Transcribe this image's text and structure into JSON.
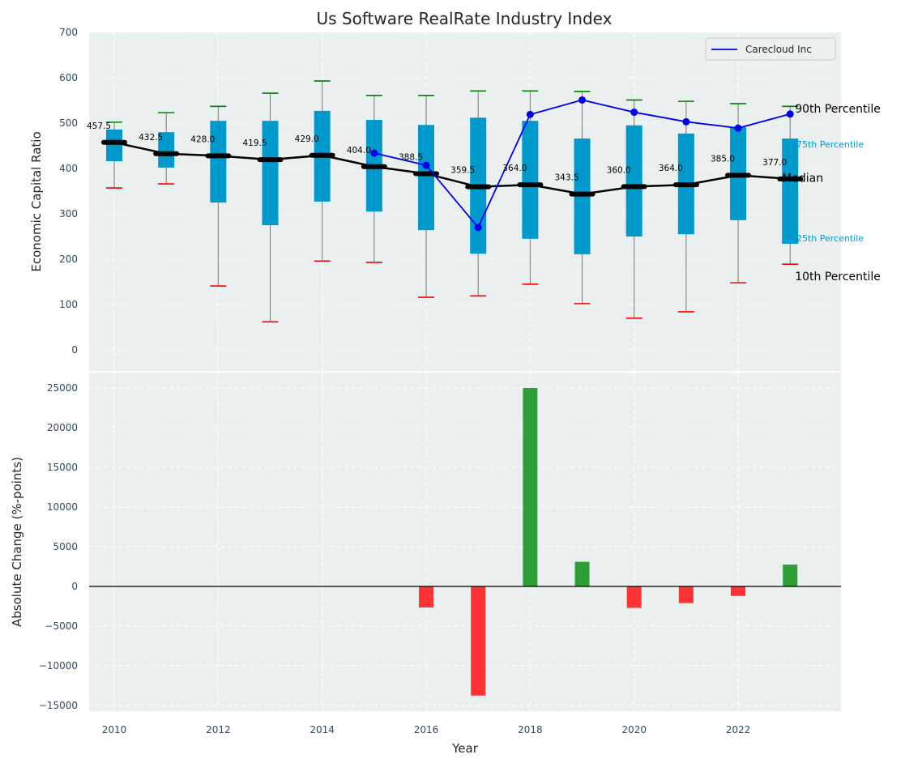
{
  "chart_data": [
    {
      "type": "box",
      "title": "Us Software RealRate Industry Index",
      "xlabel": "",
      "ylabel": "Economic Capital Ratio",
      "ylim": [
        -50,
        700
      ],
      "yticks": [
        0,
        100,
        200,
        300,
        400,
        500,
        600,
        700
      ],
      "grid": true,
      "legend": {
        "position": "top-right",
        "entries": [
          "Carecloud Inc"
        ]
      },
      "x": [
        2010,
        2011,
        2012,
        2013,
        2014,
        2015,
        2016,
        2017,
        2018,
        2019,
        2020,
        2021,
        2022,
        2023
      ],
      "series": [
        {
          "name": "90th Percentile",
          "values": [
            502,
            523,
            537,
            566,
            593,
            561,
            561,
            571,
            571,
            570,
            551,
            548,
            543,
            537
          ]
        },
        {
          "name": "75th Percentile",
          "values": [
            486,
            480,
            505,
            505,
            527,
            507,
            496,
            512,
            505,
            466,
            495,
            477,
            491,
            466
          ]
        },
        {
          "name": "Median",
          "values": [
            457.5,
            432.5,
            428.0,
            419.5,
            429.0,
            404.0,
            388.5,
            359.5,
            364.0,
            343.5,
            360.0,
            364.0,
            385.0,
            377.0
          ]
        },
        {
          "name": "25th Percentile",
          "values": [
            416,
            402,
            325,
            275,
            327,
            305,
            264,
            212,
            245,
            211,
            250,
            255,
            286,
            234
          ]
        },
        {
          "name": "10th Percentile",
          "values": [
            357,
            366,
            141,
            62,
            196,
            193,
            116,
            119,
            145,
            102,
            70,
            84,
            148,
            189
          ]
        },
        {
          "name": "Carecloud Inc",
          "x": [
            2015,
            2016,
            2017,
            2018,
            2019,
            2020,
            2021,
            2022,
            2023
          ],
          "values": [
            434,
            407,
            270,
            519,
            551,
            524,
            503,
            489,
            520
          ]
        }
      ],
      "median_labels": [
        "457.5",
        "432.5",
        "428.0",
        "419.5",
        "429.0",
        "404.0",
        "388.5",
        "359.5",
        "364.0",
        "343.5",
        "360.0",
        "364.0",
        "385.0",
        "377.0"
      ],
      "annotations": {
        "p90": "90th Percentile",
        "p75": "75th Percentile",
        "median": "Median",
        "p25": "25th Percentile",
        "p10": "10th Percentile"
      }
    },
    {
      "type": "bar",
      "xlabel": "Year",
      "ylabel": "Absolute Change (%-points)",
      "ylim": [
        -15500,
        26000
      ],
      "yticks": [
        -15000,
        -10000,
        -5000,
        0,
        5000,
        10000,
        15000,
        20000,
        25000
      ],
      "xticks": [
        2010,
        2012,
        2014,
        2016,
        2018,
        2020,
        2022
      ],
      "grid": true,
      "x": [
        2016,
        2017,
        2018,
        2019,
        2020,
        2021,
        2022,
        2023
      ],
      "values": [
        -2650,
        -13750,
        25000,
        3100,
        -2700,
        -2100,
        -1200,
        2750
      ]
    }
  ],
  "colors": {
    "box": "#0099cc",
    "median": "#000000",
    "company": "#0000ee",
    "p90_cap": "#008000",
    "p10_cap": "#ff0000",
    "positive_bar": "#2e9e36",
    "negative_bar": "#ff3333",
    "plot_bg": "#eaeff0"
  }
}
